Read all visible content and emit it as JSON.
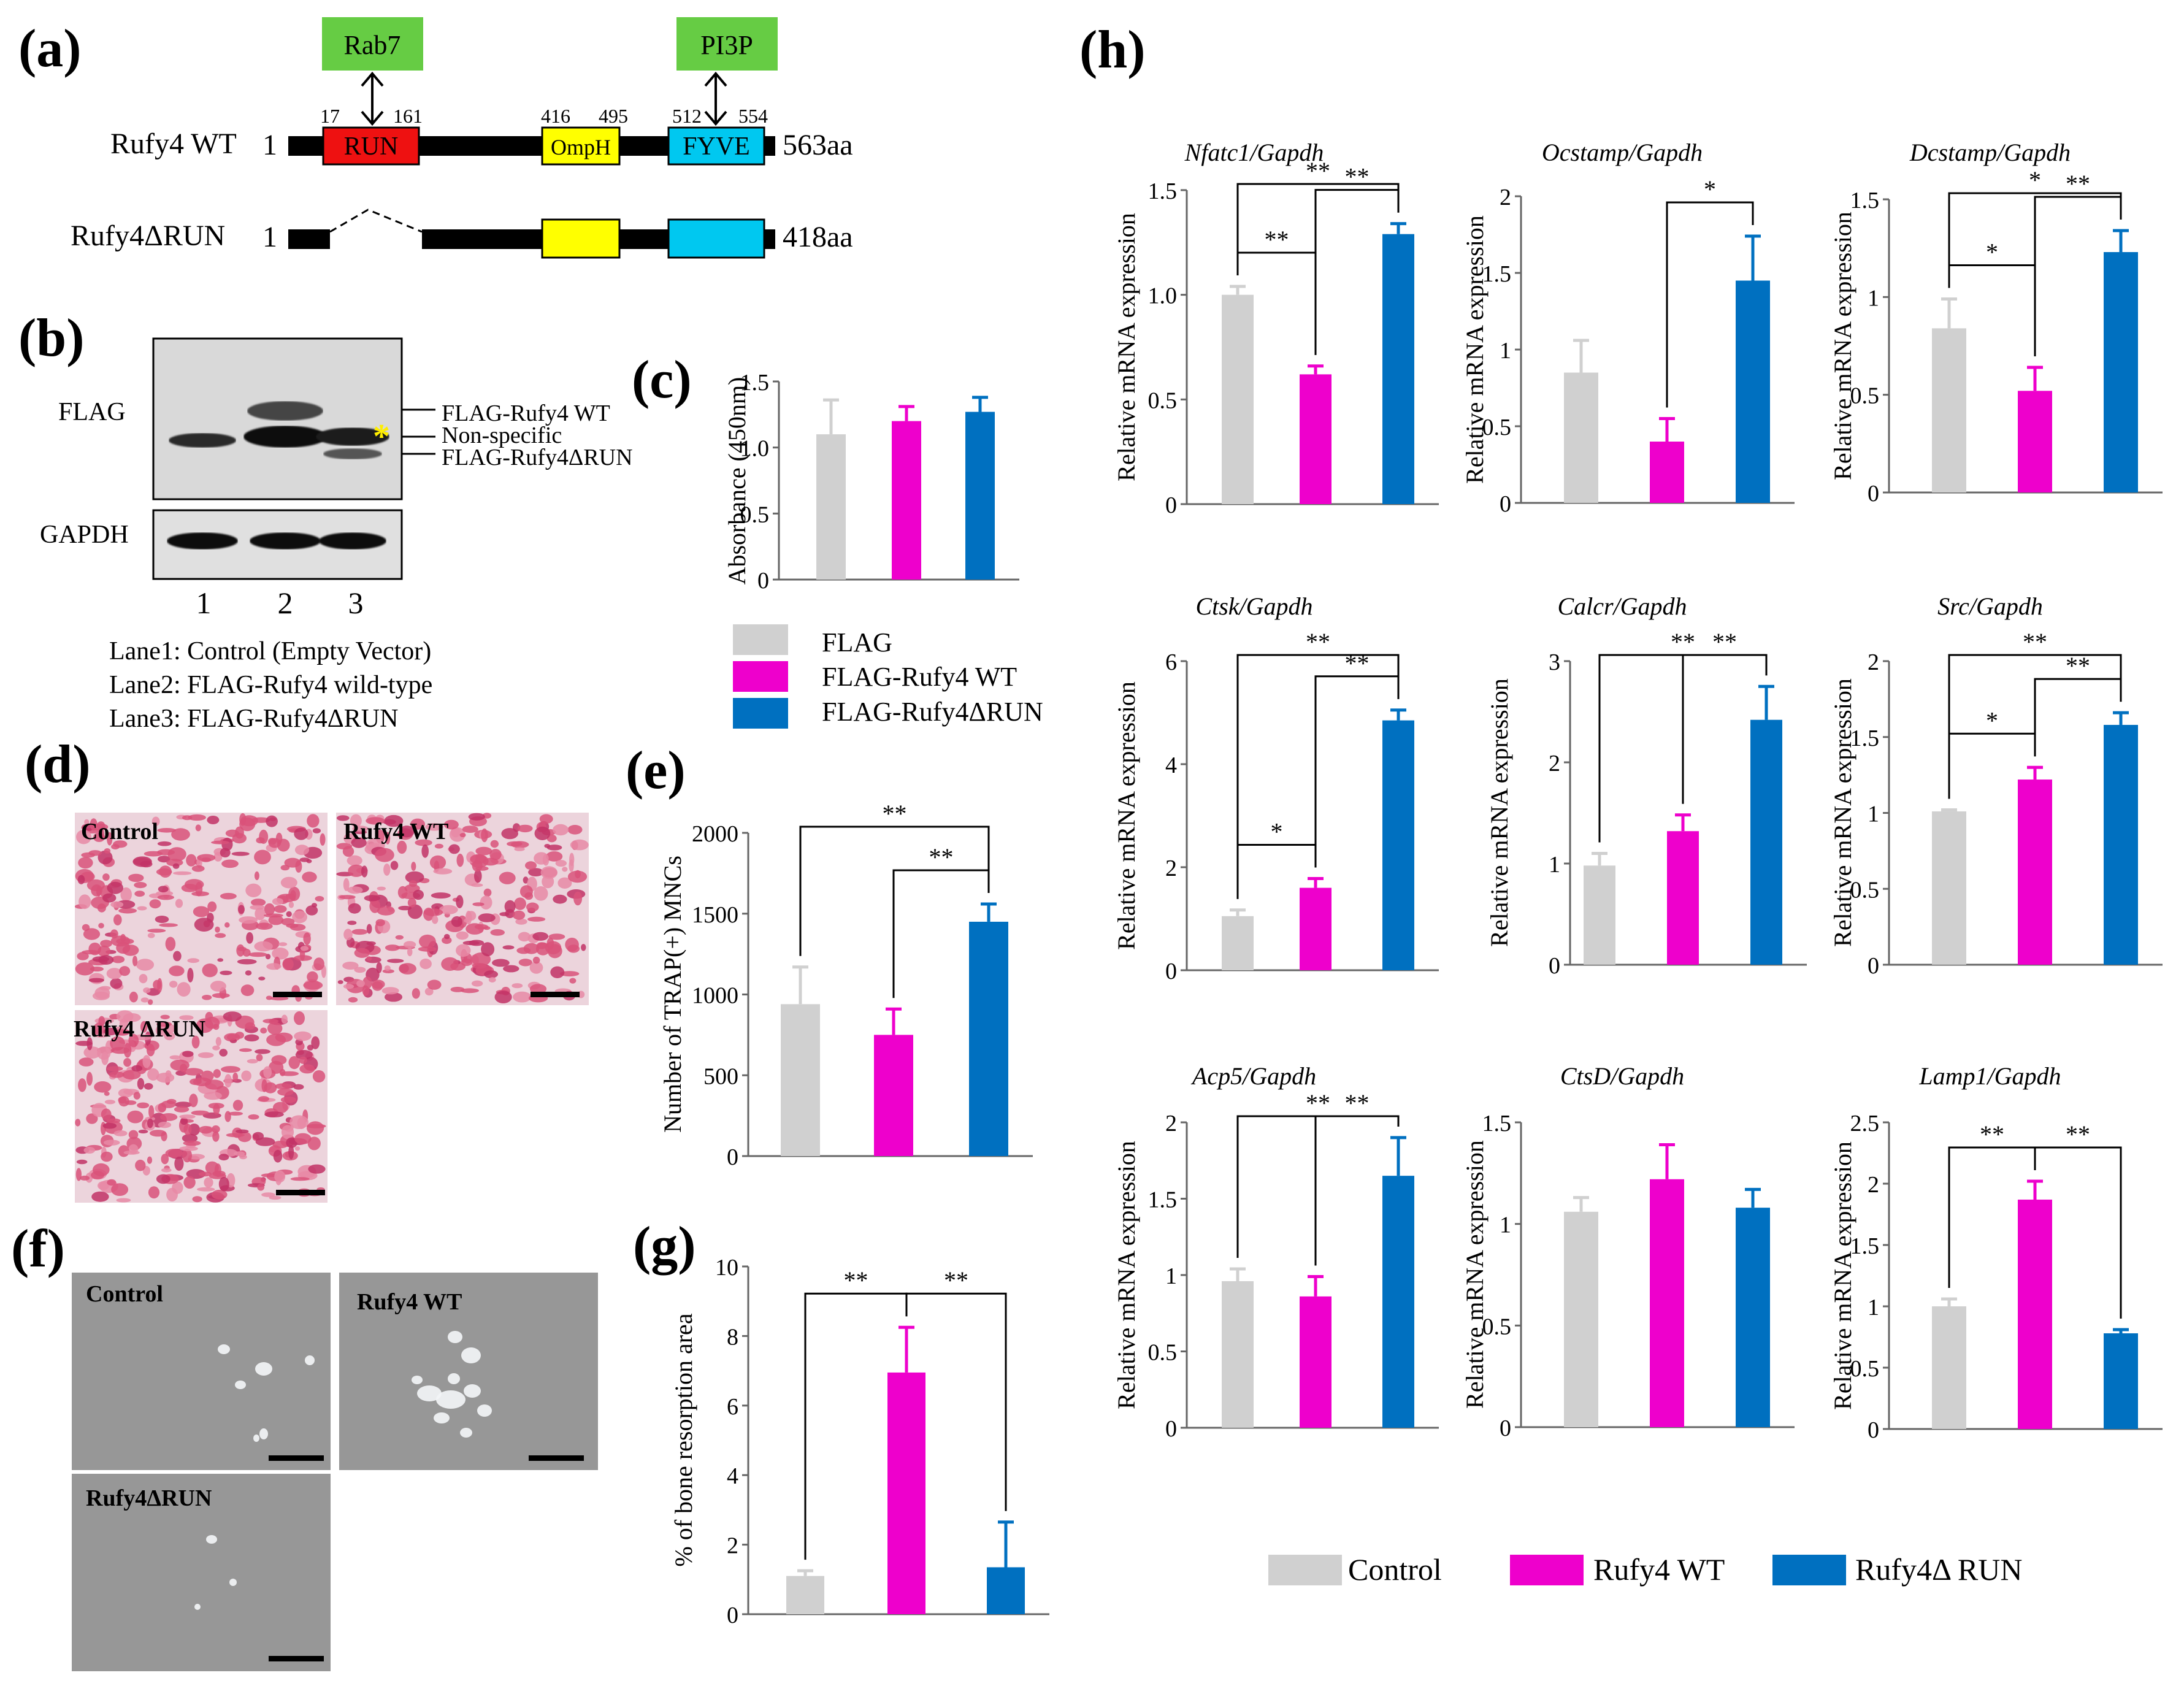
{
  "colors": {
    "control": "#d0d0d0",
    "wt": "#ee00cc",
    "druns": "#0070c0",
    "rab": "#66cc44",
    "run": "#ee1111",
    "omph": "#ffff00",
    "fyve": "#00c8f0"
  },
  "panel_a": {
    "letter": "(a)",
    "rab7": "Rab7",
    "pi3p": "PI3P",
    "wt_label": "Rufy4 WT",
    "wt_start": "1",
    "wt_end": "563aa",
    "dr_label": "Rufy4ΔRUN",
    "dr_start": "1",
    "dr_end": "418aa",
    "n17": "17",
    "n161": "161",
    "n416": "416",
    "n495": "495",
    "n512": "512",
    "n554": "554",
    "run": "RUN",
    "omph": "OmpH",
    "fyve": "FYVE"
  },
  "panel_b": {
    "letter": "(b)",
    "flag": "FLAG",
    "gapdh": "GAPDH",
    "band_wt": "FLAG-Rufy4 WT",
    "band_ns": "Non-specific",
    "band_dr": "FLAG-Rufy4ΔRUN",
    "star": "*",
    "lane1": "1",
    "lane2": "2",
    "lane3": "3",
    "leg1": "Lane1: Control (Empty Vector)",
    "leg2": "Lane2: FLAG-Rufy4 wild-type",
    "leg3": "Lane3: FLAG-Rufy4ΔRUN"
  },
  "legend_c": {
    "items": [
      "FLAG",
      "FLAG-Rufy4  WT",
      "FLAG-Rufy4ΔRUN"
    ]
  },
  "panel_d": {
    "letter": "(d)",
    "control": "Control",
    "wt": "Rufy4 WT",
    "dr": "Rufy4 ΔRUN"
  },
  "panel_f": {
    "letter": "(f)",
    "control": "Control",
    "wt": "Rufy4 WT",
    "dr": "Rufy4ΔRUN"
  },
  "panel_h": {
    "letter": "(h)"
  },
  "legend_h": {
    "items": [
      "Control",
      "Rufy4 WT",
      "Rufy4Δ RUN"
    ]
  },
  "chart_data": [
    {
      "id": "c",
      "letter": "(c)",
      "type": "bar",
      "categories": [
        "FLAG",
        "FLAG-Rufy4 WT",
        "FLAG-Rufy4ΔRUN"
      ],
      "values": [
        1.1,
        1.2,
        1.27
      ],
      "errors": [
        0.26,
        0.11,
        0.11
      ],
      "ylabel": "Absorbance (450nm)",
      "ylim": [
        0,
        1.5
      ],
      "ticks": [
        0,
        0.5,
        1.0,
        1.5
      ],
      "tick_labels": [
        "0",
        "0.5",
        "1.0",
        "1.5"
      ],
      "sig": []
    },
    {
      "id": "e",
      "letter": "(e)",
      "type": "bar",
      "categories": [
        "Control",
        "Rufy4 WT",
        "Rufy4ΔRUN"
      ],
      "values": [
        940,
        750,
        1450
      ],
      "errors": [
        230,
        160,
        110
      ],
      "ylabel": "Number of TRAP(+) MNCs",
      "ylim": [
        0,
        2000
      ],
      "ticks": [
        0,
        500,
        1000,
        1500,
        2000
      ],
      "tick_labels": [
        "0",
        "500",
        "1000",
        "1500",
        "2000"
      ],
      "sig": [
        {
          "a": 0,
          "b": 2,
          "label": "**"
        },
        {
          "a": 1,
          "b": 2,
          "label": "**"
        }
      ]
    },
    {
      "id": "g",
      "letter": "(g)",
      "type": "bar",
      "categories": [
        "Control",
        "Rufy4 WT",
        "Rufy4ΔRUN"
      ],
      "values": [
        1.1,
        6.95,
        1.35
      ],
      "errors": [
        0.15,
        1.3,
        1.3
      ],
      "ylabel": "% of bone resorption area",
      "ylim": [
        0,
        10
      ],
      "ticks": [
        0,
        2,
        4,
        6,
        8,
        10
      ],
      "tick_labels": [
        "0",
        "2",
        "4",
        "6",
        "8",
        "10"
      ],
      "sig": [
        {
          "a": 0,
          "b": 1,
          "label": "**"
        },
        {
          "a": 1,
          "b": 2,
          "label": "**"
        }
      ]
    },
    {
      "id": "h1",
      "type": "bar",
      "title": "Nfatc1/Gapdh",
      "categories": [
        "Control",
        "Rufy4 WT",
        "Rufy4ΔRUN"
      ],
      "values": [
        1.0,
        0.62,
        1.29
      ],
      "errors": [
        0.04,
        0.04,
        0.05
      ],
      "ylabel": "Relative mRNA expression",
      "ylim": [
        0,
        1.5
      ],
      "ticks": [
        0,
        0.5,
        1.0,
        1.5
      ],
      "tick_labels": [
        "0",
        "0.5",
        "1.0",
        "1.5"
      ],
      "sig": [
        {
          "a": 0,
          "b": 1,
          "label": "**"
        },
        {
          "a": 1,
          "b": 2,
          "label": "**"
        },
        {
          "a": 0,
          "b": 2,
          "label": "**"
        }
      ]
    },
    {
      "id": "h2",
      "type": "bar",
      "title": "Ocstamp/Gapdh",
      "categories": [
        "Control",
        "Rufy4 WT",
        "Rufy4ΔRUN"
      ],
      "values": [
        0.85,
        0.4,
        1.45
      ],
      "errors": [
        0.21,
        0.15,
        0.29
      ],
      "ylabel": "Relative mRNA expression",
      "ylim": [
        0,
        2
      ],
      "ticks": [
        0,
        0.5,
        1,
        1.5,
        2
      ],
      "tick_labels": [
        "0",
        "0.5",
        "1",
        "1.5",
        "2"
      ],
      "sig": [
        {
          "a": 1,
          "b": 2,
          "label": "*"
        }
      ]
    },
    {
      "id": "h3",
      "type": "bar",
      "title": "Dcstamp/Gapdh",
      "categories": [
        "Control",
        "Rufy4 WT",
        "Rufy4ΔRUN"
      ],
      "values": [
        0.84,
        0.52,
        1.23
      ],
      "errors": [
        0.15,
        0.12,
        0.11
      ],
      "ylabel": "Relative mRNA expression",
      "ylim": [
        0,
        1.5
      ],
      "ticks": [
        0,
        0.5,
        1,
        1.5
      ],
      "tick_labels": [
        "0",
        "0.5",
        "1",
        "1.5"
      ],
      "sig": [
        {
          "a": 0,
          "b": 1,
          "label": "*"
        },
        {
          "a": 1,
          "b": 2,
          "label": "**"
        },
        {
          "a": 0,
          "b": 2,
          "label": "*"
        }
      ]
    },
    {
      "id": "h4",
      "type": "bar",
      "title": "Ctsk/Gapdh",
      "categories": [
        "Control",
        "Rufy4 WT",
        "Rufy4ΔRUN"
      ],
      "values": [
        1.05,
        1.6,
        4.85
      ],
      "errors": [
        0.12,
        0.18,
        0.2
      ],
      "ylabel": "Relative mRNA expression",
      "ylim": [
        0,
        6
      ],
      "ticks": [
        0,
        2,
        4,
        6
      ],
      "tick_labels": [
        "0",
        "2",
        "4",
        "6"
      ],
      "sig": [
        {
          "a": 0,
          "b": 1,
          "label": "*"
        },
        {
          "a": 1,
          "b": 2,
          "label": "**"
        },
        {
          "a": 0,
          "b": 2,
          "label": "**"
        }
      ]
    },
    {
      "id": "h5",
      "type": "bar",
      "title": "Calcr/Gapdh",
      "categories": [
        "Control",
        "Rufy4 WT",
        "Rufy4ΔRUN"
      ],
      "values": [
        0.98,
        1.32,
        2.42
      ],
      "errors": [
        0.12,
        0.16,
        0.33
      ],
      "ylabel": "Relative mRNA expression",
      "ylim": [
        0,
        3
      ],
      "ticks": [
        0,
        1,
        2,
        3
      ],
      "tick_labels": [
        "0",
        "1",
        "2",
        "3"
      ],
      "sig": [
        {
          "a": 1,
          "b": 2,
          "label": "**"
        },
        {
          "a": 0,
          "b": 2,
          "label": "**"
        }
      ]
    },
    {
      "id": "h6",
      "type": "bar",
      "title": "Src/Gapdh",
      "categories": [
        "Control",
        "Rufy4 WT",
        "Rufy4ΔRUN"
      ],
      "values": [
        1.01,
        1.22,
        1.58
      ],
      "errors": [
        0.01,
        0.08,
        0.08
      ],
      "ylabel": "Relative mRNA expression",
      "ylim": [
        0,
        2
      ],
      "ticks": [
        0,
        0.5,
        1,
        1.5,
        2
      ],
      "tick_labels": [
        "0",
        "0.5",
        "1",
        "1.5",
        "2"
      ],
      "sig": [
        {
          "a": 0,
          "b": 1,
          "label": "*"
        },
        {
          "a": 1,
          "b": 2,
          "label": "**"
        },
        {
          "a": 0,
          "b": 2,
          "label": "**"
        }
      ]
    },
    {
      "id": "h7",
      "type": "bar",
      "title": "Acp5/Gapdh",
      "categories": [
        "Control",
        "Rufy4 WT",
        "Rufy4ΔRUN"
      ],
      "values": [
        0.96,
        0.86,
        1.65
      ],
      "errors": [
        0.08,
        0.13,
        0.25
      ],
      "ylabel": "Relative mRNA expression",
      "ylim": [
        0,
        2
      ],
      "ticks": [
        0,
        0.5,
        1,
        1.5,
        2
      ],
      "tick_labels": [
        "0",
        "0.5",
        "1",
        "1.5",
        "2"
      ],
      "sig": [
        {
          "a": 1,
          "b": 2,
          "label": "**"
        },
        {
          "a": 0,
          "b": 2,
          "label": "**"
        }
      ]
    },
    {
      "id": "h8",
      "type": "bar",
      "title": "CtsD/Gapdh",
      "categories": [
        "Control",
        "Rufy4 WT",
        "Rufy4ΔRUN"
      ],
      "values": [
        1.06,
        1.22,
        1.08
      ],
      "errors": [
        0.07,
        0.17,
        0.09
      ],
      "ylabel": "Relative mRNA expression",
      "ylim": [
        0,
        1.5
      ],
      "ticks": [
        0,
        0.5,
        1,
        1.5
      ],
      "tick_labels": [
        "0",
        "0.5",
        "1",
        "1.5"
      ],
      "sig": []
    },
    {
      "id": "h9",
      "type": "bar",
      "title": "Lamp1/Gapdh",
      "categories": [
        "Control",
        "Rufy4 WT",
        "Rufy4ΔRUN"
      ],
      "values": [
        1.0,
        1.87,
        0.78
      ],
      "errors": [
        0.06,
        0.15,
        0.03
      ],
      "ylabel": "Relative mRNA expression",
      "ylim": [
        0,
        2.5
      ],
      "ticks": [
        0,
        0.5,
        1,
        1.5,
        2,
        2.5
      ],
      "tick_labels": [
        "0",
        "0.5",
        "1",
        "1.5",
        "2",
        "2.5"
      ],
      "sig": [
        {
          "a": 0,
          "b": 1,
          "label": "**"
        },
        {
          "a": 1,
          "b": 2,
          "label": "**"
        }
      ]
    }
  ]
}
